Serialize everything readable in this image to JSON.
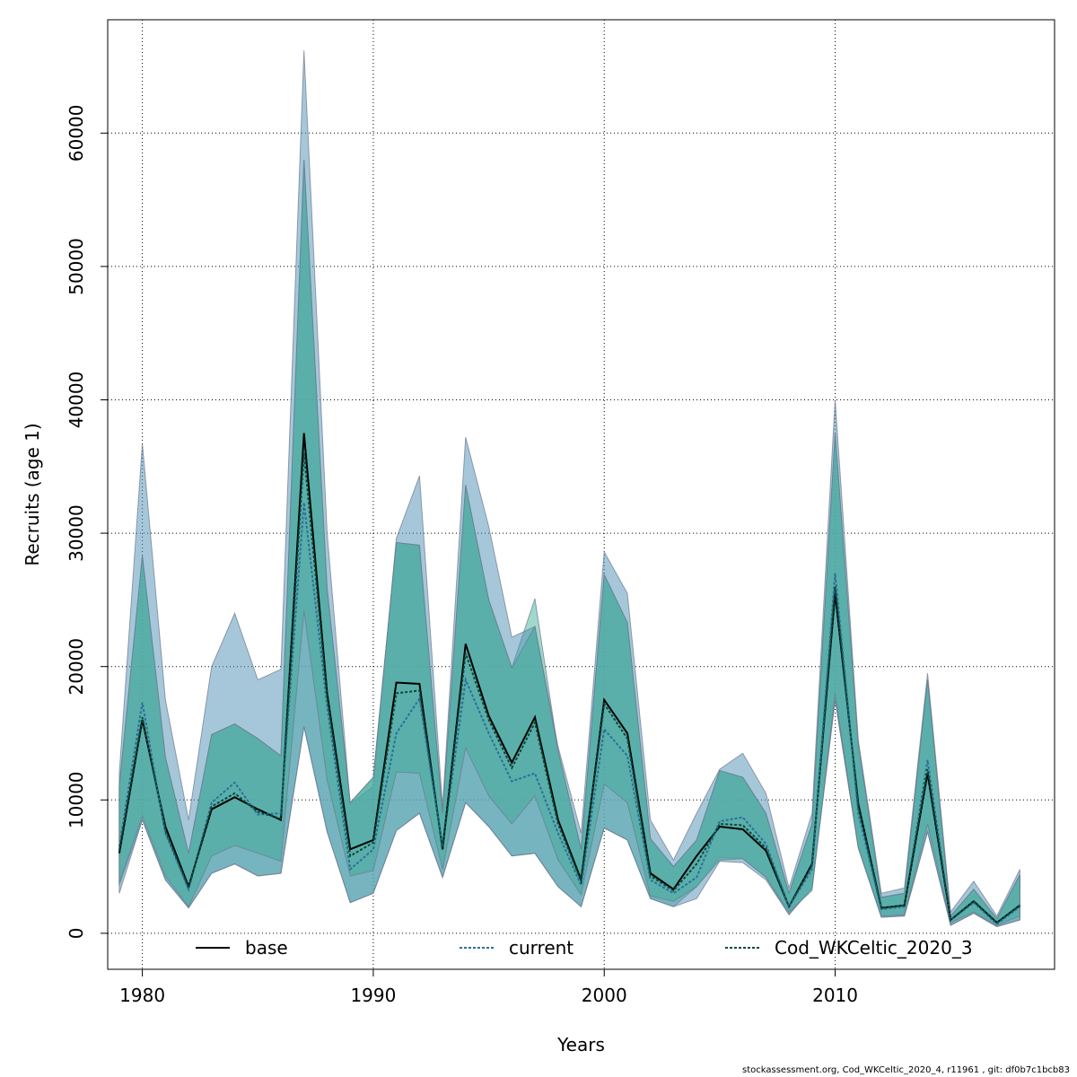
{
  "chart_data": {
    "type": "area",
    "xlabel": "Years",
    "ylabel": "Recruits (age 1)",
    "xlim": [
      1978.5,
      2019.5
    ],
    "ylim": [
      -2700,
      68500
    ],
    "x_ticks": [
      1980,
      1990,
      2000,
      2010
    ],
    "y_ticks": [
      0,
      10000,
      20000,
      30000,
      40000,
      50000,
      60000
    ],
    "grid": true,
    "legend_position": "bottom",
    "x": [
      1979,
      1980,
      1981,
      1982,
      1983,
      1984,
      1985,
      1986,
      1987,
      1988,
      1989,
      1990,
      1991,
      1992,
      1993,
      1994,
      1995,
      1996,
      1997,
      1998,
      1999,
      2000,
      2001,
      2002,
      2003,
      2004,
      2005,
      2006,
      2007,
      2008,
      2009,
      2010,
      2011,
      2012,
      2013,
      2014,
      2015,
      2016,
      2017,
      2018
    ],
    "series": [
      {
        "name": "base",
        "line_style": "solid",
        "color": "#000000",
        "band_color": "#4d8fb3",
        "values": [
          6000,
          16000,
          8000,
          3500,
          9300,
          10200,
          9300,
          8500,
          37500,
          18000,
          6300,
          7000,
          18800,
          18700,
          6300,
          21700,
          16300,
          12800,
          16200,
          8500,
          4000,
          17500,
          15000,
          4500,
          3300,
          5800,
          8000,
          7800,
          6200,
          2000,
          5200,
          25500,
          9700,
          1900,
          2100,
          12000,
          1000,
          2400,
          800,
          2100
        ],
        "lower": [
          3000,
          8500,
          4000,
          1900,
          4500,
          5200,
          4300,
          4500,
          15500,
          7600,
          2300,
          3000,
          7700,
          9000,
          4200,
          9800,
          8000,
          5800,
          6000,
          3500,
          2000,
          7900,
          7000,
          2600,
          2000,
          2600,
          5400,
          5300,
          4000,
          1400,
          3400,
          17500,
          6400,
          1200,
          1300,
          7600,
          600,
          1500,
          500,
          1000
        ],
        "upper": [
          12000,
          36700,
          17500,
          8500,
          20000,
          24000,
          19000,
          19800,
          66200,
          30000,
          9700,
          11000,
          29600,
          34300,
          9500,
          37200,
          30500,
          22200,
          23000,
          14000,
          7500,
          28600,
          25500,
          8500,
          5500,
          9000,
          12300,
          13500,
          10500,
          3400,
          9000,
          40000,
          14500,
          3000,
          3400,
          19500,
          1600,
          3900,
          1300,
          4800
        ]
      },
      {
        "name": "current",
        "line_style": "dotted",
        "color": "#2c6f98",
        "values": [
          6500,
          17300,
          7500,
          3300,
          9800,
          11300,
          8900,
          9000,
          32300,
          17000,
          4800,
          6300,
          15000,
          17600,
          6500,
          19000,
          15000,
          11400,
          12000,
          7500,
          3600,
          15300,
          13300,
          4000,
          3000,
          4200,
          8400,
          8700,
          6700,
          2000,
          4800,
          27000,
          9000,
          1800,
          2000,
          13000,
          1000,
          2300,
          700,
          2000
        ],
        "lower": [
          3800,
          8800,
          4300,
          2000,
          5800,
          6600,
          6000,
          5400,
          24200,
          11500,
          4300,
          4700,
          12100,
          12000,
          4800,
          13900,
          10300,
          8200,
          10300,
          5500,
          2900,
          11200,
          9800,
          2800,
          2400,
          3500,
          5500,
          5600,
          4200,
          1600,
          3200,
          18000,
          6400,
          1300,
          1400,
          8200,
          800,
          1600,
          600,
          1300
        ],
        "upper": [
          11000,
          28300,
          13200,
          6000,
          14900,
          15700,
          14600,
          13300,
          58000,
          25800,
          9800,
          11700,
          29300,
          29100,
          9000,
          33600,
          25000,
          19900,
          23000,
          13700,
          6300,
          26900,
          23300,
          7100,
          5000,
          7000,
          12200,
          11700,
          9000,
          3000,
          8200,
          37500,
          14200,
          2700,
          3000,
          19000,
          1300,
          3300,
          1100,
          4400
        ]
      },
      {
        "name": "Cod_WKCeltic_2020_3",
        "line_style": "dotted",
        "color": "#0b4a3a",
        "band_color": "#6cc3b0",
        "values": [
          6200,
          16200,
          7700,
          3400,
          9500,
          10500,
          9100,
          8600,
          36000,
          17700,
          5800,
          6800,
          18000,
          18200,
          6400,
          21000,
          16000,
          12400,
          15800,
          8200,
          3900,
          17200,
          14600,
          4300,
          3200,
          5200,
          8200,
          8100,
          6400,
          2000,
          5100,
          26000,
          9500,
          1900,
          2100,
          12300,
          1000,
          2400,
          800,
          2100
        ],
        "lower": [
          3600,
          8500,
          4000,
          1900,
          4500,
          5200,
          4300,
          4500,
          15500,
          7600,
          2300,
          3000,
          7700,
          9000,
          4200,
          9800,
          8000,
          5800,
          6000,
          3500,
          2000,
          7900,
          7000,
          2600,
          2000,
          3500,
          5700,
          5600,
          4200,
          1400,
          3400,
          17500,
          6400,
          1200,
          1300,
          7600,
          600,
          1500,
          500,
          1000
        ],
        "upper": [
          11000,
          28300,
          13200,
          6000,
          14900,
          15700,
          14600,
          13300,
          58000,
          25800,
          9800,
          11700,
          29300,
          29100,
          9000,
          33600,
          25000,
          19900,
          25100,
          13700,
          6300,
          26900,
          23300,
          7100,
          5000,
          7000,
          12200,
          11700,
          9000,
          3000,
          8200,
          37500,
          14200,
          2700,
          3000,
          19000,
          1300,
          3300,
          1100,
          4400
        ]
      }
    ]
  },
  "footer_text": "stockassessment.org, Cod_WKCeltic_2020_4, r11961 , git: df0b7c1bcb83"
}
